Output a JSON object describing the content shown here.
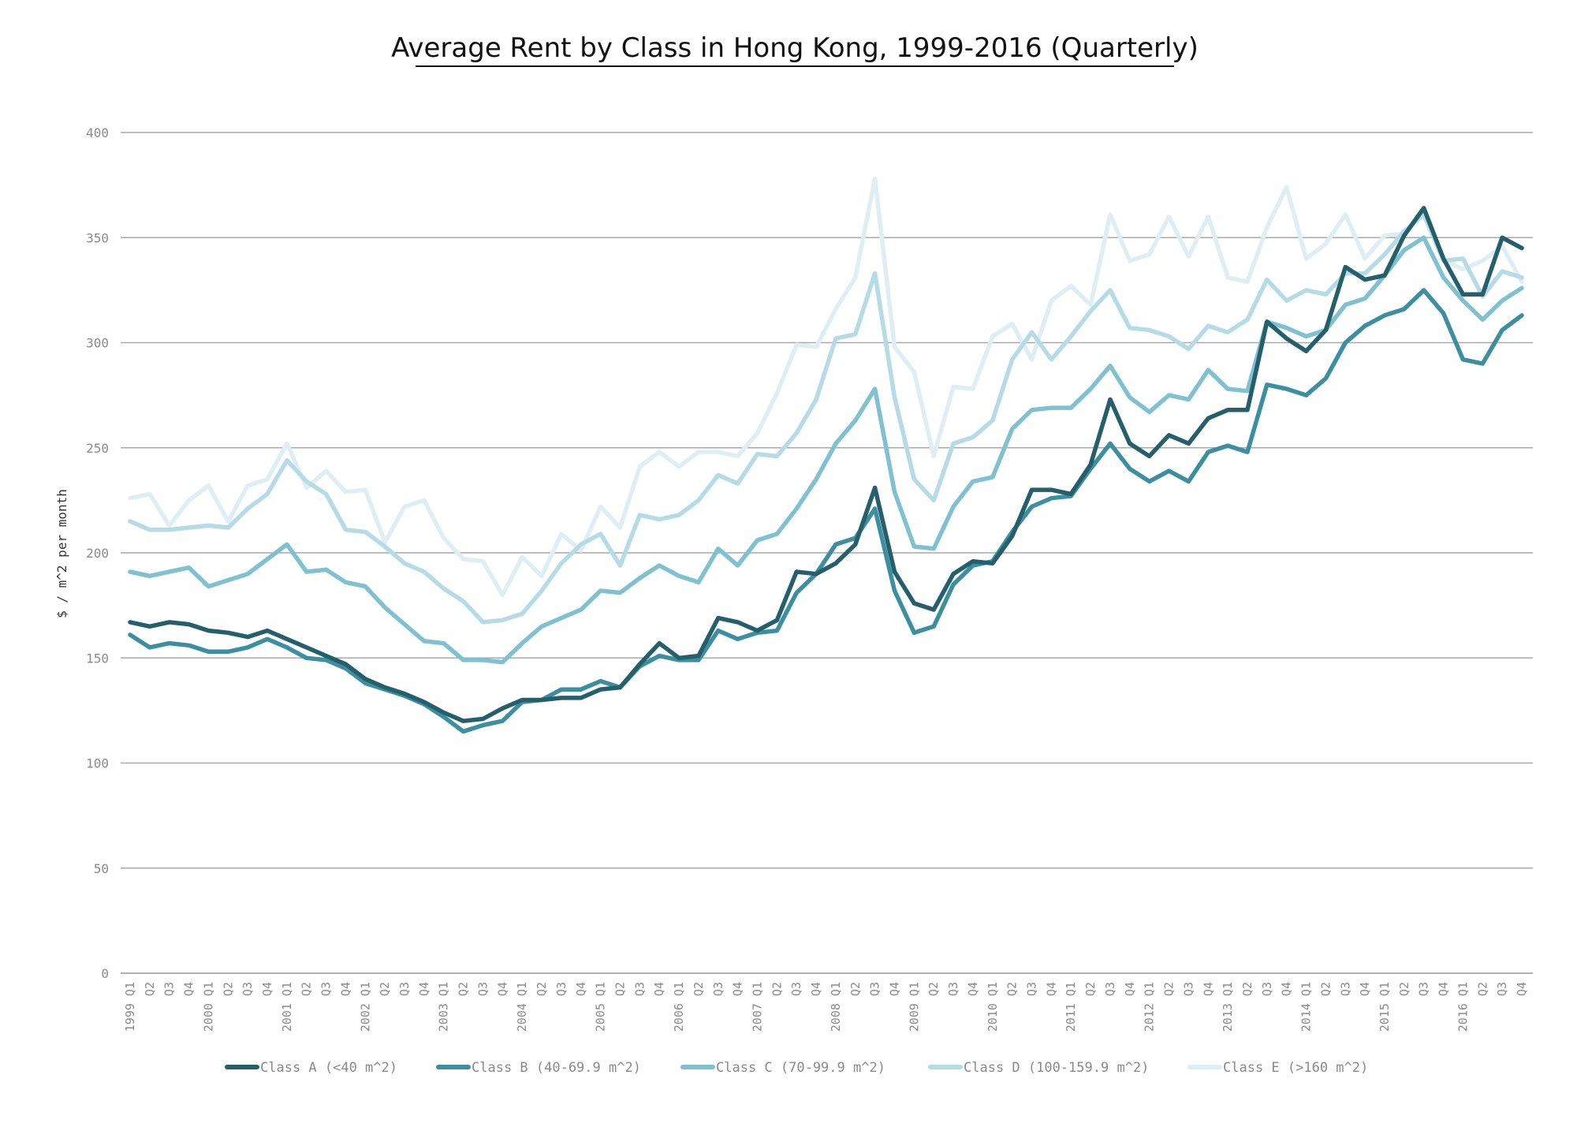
{
  "chart_data": {
    "type": "line",
    "title": "Average Rent by Class in Hong Kong, 1999-2016 (Quarterly)",
    "xlabel": "",
    "ylabel": "$ / m^2 per month",
    "ylim": [
      0,
      400
    ],
    "yticks": [
      "0",
      "50",
      "100",
      "150",
      "200",
      "250",
      "300",
      "350",
      "400"
    ],
    "grid": true,
    "legend_position": "bottom",
    "categories": [
      "1999 Q1",
      "Q2",
      "Q3",
      "Q4",
      "2000 Q1",
      "Q2",
      "Q3",
      "Q4",
      "2001 Q1",
      "Q2",
      "Q3",
      "Q4",
      "2002 Q1",
      "Q2",
      "Q3",
      "Q4",
      "2003 Q1",
      "Q2",
      "Q3",
      "Q4",
      "2004 Q1",
      "Q2",
      "Q3",
      "Q4",
      "2005 Q1",
      "Q2",
      "Q3",
      "Q4",
      "2006 Q1",
      "Q2",
      "Q3",
      "Q4",
      "2007 Q1",
      "Q2",
      "Q3",
      "Q4",
      "2008 Q1",
      "Q2",
      "Q3",
      "Q4",
      "2009 Q1",
      "Q2",
      "Q3",
      "Q4",
      "2010 Q1",
      "Q2",
      "Q3",
      "Q4",
      "2011 Q1",
      "Q2",
      "Q3",
      "Q4",
      "2012 Q1",
      "Q2",
      "Q3",
      "Q4",
      "2013 Q1",
      "Q2",
      "Q3",
      "Q4",
      "2014 Q1",
      "Q2",
      "Q3",
      "Q4",
      "2015 Q1",
      "Q2",
      "Q3",
      "Q4",
      "2016 Q1",
      "Q2",
      "Q3",
      "Q4"
    ],
    "series": [
      {
        "name": "Class A (<40 m^2)",
        "color": "#245f6b",
        "values": [
          167,
          165,
          167,
          166,
          163,
          162,
          160,
          163,
          159,
          155,
          151,
          147,
          140,
          136,
          133,
          129,
          124,
          120,
          121,
          126,
          130,
          130,
          131,
          131,
          135,
          136,
          147,
          157,
          150,
          151,
          169,
          167,
          163,
          168,
          191,
          190,
          195,
          204,
          231,
          191,
          176,
          173,
          190,
          196,
          195,
          208,
          230,
          230,
          228,
          242,
          273,
          252,
          246,
          256,
          252,
          264,
          268,
          268,
          310,
          302,
          296,
          306,
          336,
          330,
          332,
          351,
          364,
          340,
          323,
          323,
          350,
          345
        ]
      },
      {
        "name": "Class B (40-69.9 m^2)",
        "color": "#3b8fa0",
        "values": [
          161,
          155,
          157,
          156,
          153,
          153,
          155,
          159,
          155,
          150,
          149,
          145,
          138,
          135,
          132,
          128,
          122,
          115,
          118,
          120,
          129,
          130,
          135,
          135,
          139,
          136,
          146,
          151,
          149,
          149,
          163,
          159,
          162,
          163,
          181,
          190,
          204,
          207,
          221,
          182,
          162,
          165,
          185,
          194,
          196,
          210,
          222,
          226,
          227,
          240,
          252,
          240,
          234,
          239,
          234,
          248,
          251,
          248,
          280,
          278,
          275,
          283,
          300,
          308,
          313,
          316,
          325,
          314,
          292,
          290,
          306,
          313
        ]
      },
      {
        "name": "Class C (70-99.9 m^2)",
        "color": "#7fc1d1",
        "values": [
          191,
          189,
          191,
          193,
          184,
          187,
          190,
          197,
          204,
          191,
          192,
          186,
          184,
          174,
          166,
          158,
          157,
          149,
          149,
          148,
          157,
          165,
          169,
          173,
          182,
          181,
          188,
          194,
          189,
          186,
          202,
          194,
          206,
          209,
          221,
          235,
          252,
          263,
          278,
          229,
          203,
          202,
          222,
          234,
          236,
          259,
          268,
          269,
          269,
          278,
          289,
          274,
          267,
          275,
          273,
          287,
          278,
          277,
          310,
          307,
          303,
          306,
          318,
          321,
          332,
          344,
          350,
          331,
          320,
          311,
          320,
          326
        ]
      },
      {
        "name": "Class D (100-159.9 m^2)",
        "color": "#b5dbe6",
        "values": [
          215,
          211,
          211,
          212,
          213,
          212,
          221,
          228,
          244,
          234,
          228,
          211,
          210,
          203,
          195,
          191,
          183,
          177,
          167,
          168,
          171,
          182,
          195,
          204,
          209,
          194,
          218,
          216,
          218,
          225,
          237,
          233,
          247,
          246,
          257,
          273,
          302,
          304,
          333,
          274,
          235,
          225,
          252,
          255,
          263,
          292,
          305,
          292,
          303,
          315,
          325,
          307,
          306,
          303,
          297,
          308,
          305,
          311,
          330,
          320,
          325,
          323,
          333,
          333,
          342,
          353,
          361,
          339,
          340,
          322,
          334,
          331
        ]
      },
      {
        "name": "Class E (>160 m^2)",
        "color": "#dfeef3",
        "values": [
          226,
          228,
          213,
          225,
          232,
          215,
          232,
          235,
          252,
          231,
          239,
          229,
          230,
          205,
          222,
          225,
          207,
          197,
          196,
          180,
          198,
          189,
          209,
          201,
          222,
          212,
          241,
          248,
          241,
          248,
          248,
          246,
          257,
          276,
          299,
          298,
          316,
          331,
          378,
          298,
          286,
          246,
          279,
          278,
          303,
          309,
          292,
          320,
          327,
          318,
          361,
          339,
          342,
          360,
          341,
          360,
          331,
          329,
          355,
          374,
          340,
          347,
          361,
          340,
          351,
          352,
          364,
          339,
          335,
          339,
          346,
          329
        ]
      }
    ]
  }
}
